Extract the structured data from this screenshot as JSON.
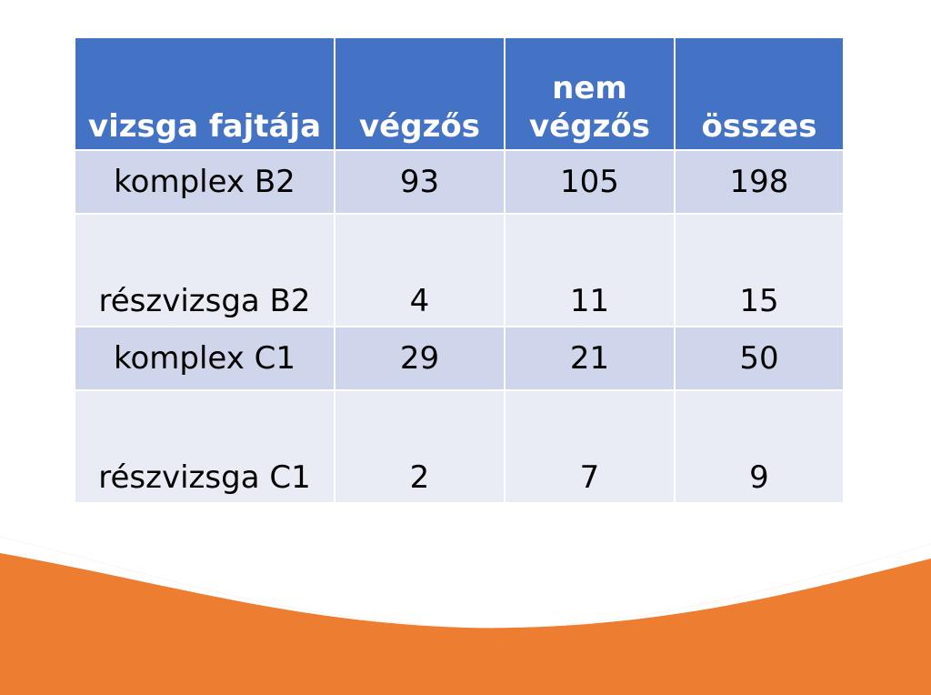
{
  "colors": {
    "header_bg": "#4472c4",
    "row_dark": "#cfd5ea",
    "row_light": "#e9ebf5",
    "accent_orange": "#ed7d31"
  },
  "table": {
    "headers": [
      "vizsga fajtája",
      "végzős",
      "nem végzős",
      "összes"
    ],
    "header_lines": {
      "col3_line1": "nem",
      "col3_line2": "végzős"
    },
    "rows": [
      {
        "type": "komplex B2",
        "vegzos": "93",
        "nem_vegzos": "105",
        "osszes": "198"
      },
      {
        "type": "részvizsga B2",
        "vegzos": "4",
        "nem_vegzos": "11",
        "osszes": "15"
      },
      {
        "type": "komplex C1",
        "vegzos": "29",
        "nem_vegzos": "21",
        "osszes": "50"
      },
      {
        "type": "részvizsga C1",
        "vegzos": "2",
        "nem_vegzos": "7",
        "osszes": "9"
      }
    ]
  }
}
